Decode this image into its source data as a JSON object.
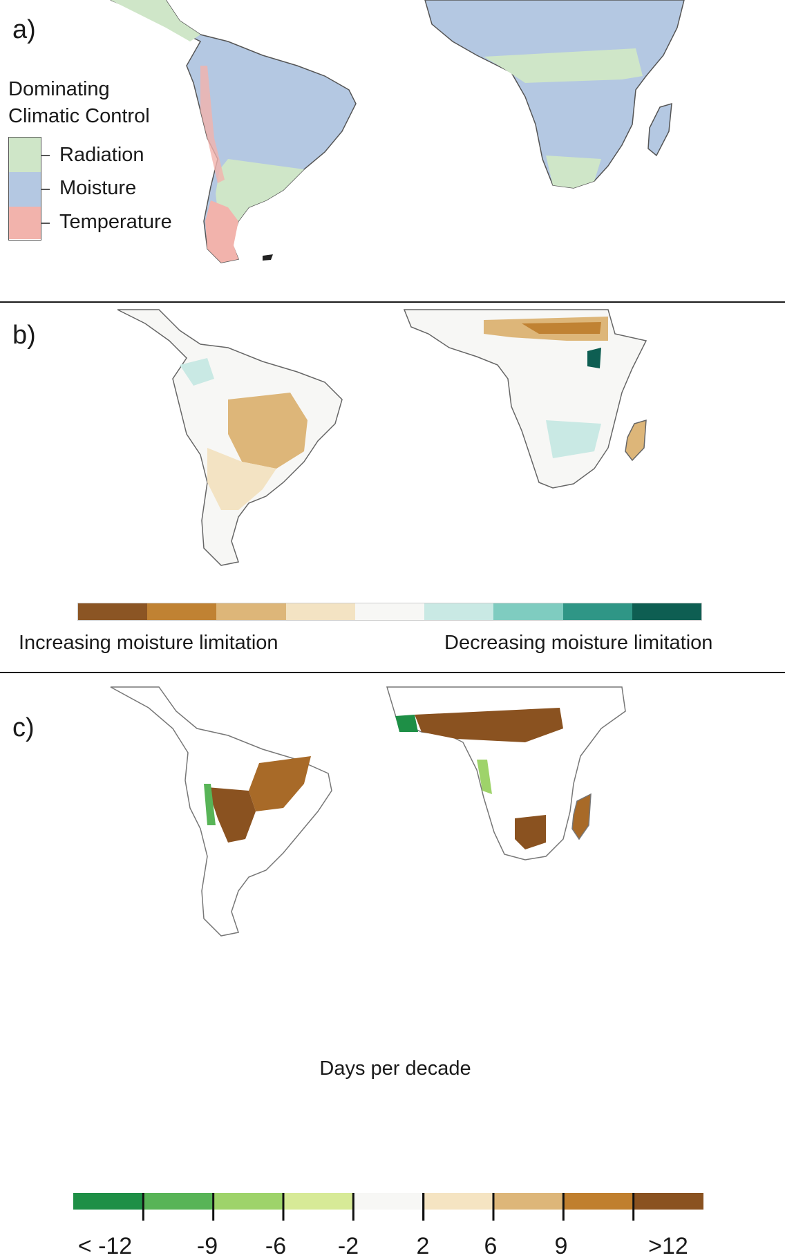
{
  "panels": {
    "a": {
      "label": "a)"
    },
    "b": {
      "label": "b)"
    },
    "c": {
      "label": "c)"
    }
  },
  "legend_a": {
    "title_line1": "Dominating",
    "title_line2": "Climatic Control",
    "items": [
      {
        "label": "Radiation",
        "color": "#cfe6c8"
      },
      {
        "label": "Moisture",
        "color": "#b4c8e2"
      },
      {
        "label": "Temperature",
        "color": "#f2b3ac"
      }
    ]
  },
  "colorbar_b": {
    "colors": [
      "#8b5524",
      "#c08233",
      "#ddb679",
      "#f3e3c3",
      "#f7f7f5",
      "#c9e9e4",
      "#7fccc0",
      "#2f9686",
      "#0e5e52"
    ],
    "left_label": "Increasing moisture limitation",
    "right_label": "Decreasing moisture limitation"
  },
  "colorbar_c": {
    "colors": [
      "#1e8f46",
      "#58b457",
      "#9ed36a",
      "#d7ea97",
      "#f7f7f5",
      "#f5e4c2",
      "#ddb679",
      "#c07f2e",
      "#8a5220"
    ],
    "tick_labels": [
      "< -12",
      "-9",
      "-6",
      "-2",
      "2",
      "6",
      "9",
      ">12"
    ],
    "unit": "Days per decade"
  },
  "map_colors": {
    "land_outline": "#555555",
    "ocean": "#ffffff",
    "radiation": "#cfe6c8",
    "moisture": "#b4c8e2",
    "temperature": "#f2b3ac",
    "brown_dark": "#8a5220",
    "brown_mid": "#c08233",
    "tan": "#ddb679",
    "light_tan": "#f3e3c3",
    "teal_light": "#c9e9e4",
    "teal_dark": "#0e5e52",
    "green": "#58b457",
    "green_dark": "#1e8f46"
  }
}
